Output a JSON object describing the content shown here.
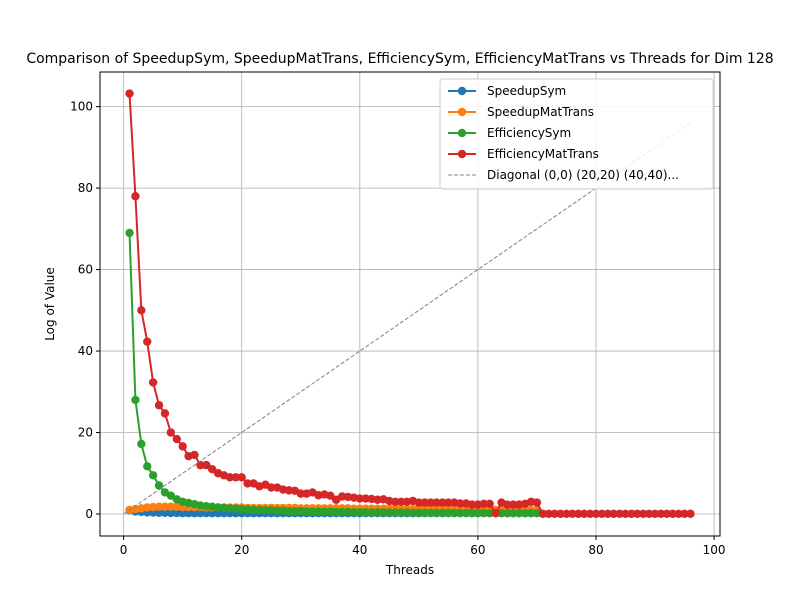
{
  "chart_data": {
    "type": "line",
    "title": "Comparison of SpeedupSym, SpeedupMatTrans, EfficiencySym, EfficiencyMatTrans vs Threads for Dim 128",
    "xlabel": "Threads",
    "ylabel": "Log of Value",
    "xlim": [
      -4,
      101
    ],
    "ylim": [
      -5.4,
      108.5
    ],
    "xticks": [
      0,
      20,
      40,
      60,
      80,
      100
    ],
    "yticks": [
      0,
      20,
      40,
      60,
      80,
      100
    ],
    "grid": true,
    "legend_position": "top-right",
    "series": [
      {
        "name": "SpeedupSym",
        "color": "#1f77b4",
        "marker": "circle",
        "x": [
          1,
          2,
          3,
          4,
          5,
          6,
          7,
          8,
          9,
          10,
          11,
          12,
          13,
          14,
          15,
          16,
          17,
          18,
          19,
          20,
          21,
          22,
          23,
          24,
          25,
          26,
          27,
          28,
          29,
          30,
          31,
          32,
          33,
          34,
          35,
          36,
          37,
          38,
          39,
          40,
          41,
          42,
          43,
          44,
          45,
          46,
          47,
          48,
          49,
          50,
          51,
          52,
          53,
          54,
          55,
          56,
          57,
          58,
          59,
          60,
          61,
          62,
          63,
          64,
          65,
          66,
          67,
          68,
          69,
          70
        ],
        "y": [
          0.9,
          0.6,
          0.5,
          0.4,
          0.35,
          0.3,
          0.3,
          0.25,
          0.25,
          0.2,
          0.2,
          0.2,
          0.2,
          0.2,
          0.2,
          0.2,
          0.2,
          0.2,
          0.2,
          0.2,
          0.2,
          0.2,
          0.2,
          0.2,
          0.2,
          0.2,
          0.2,
          0.2,
          0.2,
          0.2,
          0.2,
          0.2,
          0.2,
          0.2,
          0.2,
          0.2,
          0.2,
          0.2,
          0.2,
          0.2,
          0.2,
          0.2,
          0.2,
          0.2,
          0.2,
          0.2,
          0.2,
          0.2,
          0.2,
          0.2,
          0.2,
          0.2,
          0.2,
          0.2,
          0.2,
          0.2,
          0.2,
          0.2,
          0.2,
          0.2,
          0.2,
          0.2,
          0.2,
          0.2,
          0.2,
          0.2,
          0.2,
          0.2,
          0.2,
          0.2
        ]
      },
      {
        "name": "SpeedupMatTrans",
        "color": "#ff7f0e",
        "marker": "circle",
        "x": [
          1,
          2,
          3,
          4,
          5,
          6,
          7,
          8,
          9,
          10,
          11,
          12,
          13,
          14,
          15,
          16,
          17,
          18,
          19,
          20,
          21,
          22,
          23,
          24,
          25,
          26,
          27,
          28,
          29,
          30,
          31,
          32,
          33,
          34,
          35,
          36,
          37,
          38,
          39,
          40,
          41,
          42,
          43,
          44,
          45,
          46,
          47,
          48,
          49,
          50,
          51,
          52,
          53,
          54,
          55,
          56,
          57,
          58,
          59,
          60,
          61,
          62,
          63,
          64,
          65,
          66,
          67,
          68,
          69,
          70
        ],
        "y": [
          1.0,
          1.2,
          1.4,
          1.6,
          1.7,
          1.8,
          1.8,
          1.8,
          1.8,
          1.7,
          1.7,
          1.7,
          1.7,
          1.6,
          1.6,
          1.6,
          1.6,
          1.6,
          1.6,
          1.6,
          1.5,
          1.5,
          1.5,
          1.5,
          1.5,
          1.5,
          1.5,
          1.5,
          1.5,
          1.4,
          1.4,
          1.4,
          1.4,
          1.4,
          1.4,
          1.4,
          1.4,
          1.4,
          1.3,
          1.3,
          1.3,
          1.3,
          1.3,
          1.3,
          1.3,
          1.3,
          1.2,
          1.2,
          1.2,
          1.2,
          1.2,
          1.2,
          1.2,
          1.2,
          1.1,
          1.1,
          1.1,
          1.1,
          1.1,
          1.1,
          1.0,
          1.0,
          1.0,
          1.0,
          1.0,
          1.0,
          1.0,
          1.0,
          1.0,
          1.0
        ]
      },
      {
        "name": "EfficiencySym",
        "color": "#2ca02c",
        "marker": "circle",
        "x": [
          1,
          2,
          3,
          4,
          5,
          6,
          7,
          8,
          9,
          10,
          11,
          12,
          13,
          14,
          15,
          16,
          17,
          18,
          19,
          20,
          21,
          22,
          23,
          24,
          25,
          26,
          27,
          28,
          29,
          30,
          31,
          32,
          33,
          34,
          35,
          36,
          37,
          38,
          39,
          40,
          41,
          42,
          43,
          44,
          45,
          46,
          47,
          48,
          49,
          50,
          51,
          52,
          53,
          54,
          55,
          56,
          57,
          58,
          59,
          60,
          61,
          62,
          63,
          64,
          65,
          66,
          67,
          68,
          69,
          70
        ],
        "y": [
          69.0,
          28.0,
          17.2,
          11.7,
          9.5,
          7.0,
          5.3,
          4.5,
          3.6,
          3.0,
          2.7,
          2.4,
          2.1,
          1.9,
          1.8,
          1.6,
          1.5,
          1.4,
          1.3,
          1.2,
          1.1,
          1.0,
          1.0,
          0.9,
          0.9,
          0.8,
          0.8,
          0.7,
          0.7,
          0.7,
          0.6,
          0.6,
          0.6,
          0.55,
          0.55,
          0.5,
          0.5,
          0.5,
          0.45,
          0.45,
          0.4,
          0.4,
          0.4,
          0.4,
          0.35,
          0.35,
          0.35,
          0.35,
          0.3,
          0.3,
          0.3,
          0.3,
          0.3,
          0.3,
          0.3,
          0.25,
          0.25,
          0.25,
          0.25,
          0.25,
          0.25,
          0.2,
          0.2,
          0.2,
          0.2,
          0.2,
          0.2,
          0.2,
          0.2,
          0.2
        ]
      },
      {
        "name": "EfficiencyMatTrans",
        "color": "#d62728",
        "marker": "circle",
        "x": [
          1,
          2,
          3,
          4,
          5,
          6,
          7,
          8,
          9,
          10,
          11,
          12,
          13,
          14,
          15,
          16,
          17,
          18,
          19,
          20,
          21,
          22,
          23,
          24,
          25,
          26,
          27,
          28,
          29,
          30,
          31,
          32,
          33,
          34,
          35,
          36,
          37,
          38,
          39,
          40,
          41,
          42,
          43,
          44,
          45,
          46,
          47,
          48,
          49,
          50,
          51,
          52,
          53,
          54,
          55,
          56,
          57,
          58,
          59,
          60,
          61,
          62,
          63,
          64,
          65,
          66,
          67,
          68,
          69,
          70,
          71,
          72,
          73,
          74,
          75,
          76,
          77,
          78,
          79,
          80,
          81,
          82,
          83,
          84,
          85,
          86,
          87,
          88,
          89,
          90,
          91,
          92,
          93,
          94,
          95,
          96
        ],
        "y": [
          103.2,
          78.0,
          50.0,
          42.3,
          32.3,
          26.7,
          24.7,
          20.0,
          18.4,
          16.6,
          14.2,
          14.5,
          12.0,
          12.0,
          11.0,
          10.0,
          9.5,
          9.0,
          9.0,
          9.0,
          7.5,
          7.5,
          6.8,
          7.2,
          6.5,
          6.5,
          6.0,
          5.8,
          5.7,
          5.0,
          5.0,
          5.3,
          4.6,
          4.8,
          4.5,
          3.5,
          4.3,
          4.2,
          4.0,
          3.8,
          3.8,
          3.7,
          3.5,
          3.6,
          3.2,
          3.0,
          3.0,
          3.0,
          3.2,
          2.8,
          2.8,
          2.8,
          2.8,
          2.8,
          2.8,
          2.8,
          2.6,
          2.6,
          2.3,
          2.3,
          2.5,
          2.5,
          0.2,
          2.8,
          2.3,
          2.3,
          2.3,
          2.5,
          3.0,
          2.8,
          0.05,
          0.05,
          0.05,
          0.05,
          0.05,
          0.05,
          0.05,
          0.05,
          0.05,
          0.05,
          0.05,
          0.05,
          0.05,
          0.05,
          0.05,
          0.05,
          0.05,
          0.05,
          0.05,
          0.05,
          0.05,
          0.05,
          0.05,
          0.05,
          0.05,
          0.05
        ]
      },
      {
        "name": "Diagonal (0,0) (20,20) (40,40)...",
        "color": "#808080",
        "style": "dashed",
        "x": [
          0,
          96
        ],
        "y": [
          0,
          96
        ]
      }
    ]
  }
}
